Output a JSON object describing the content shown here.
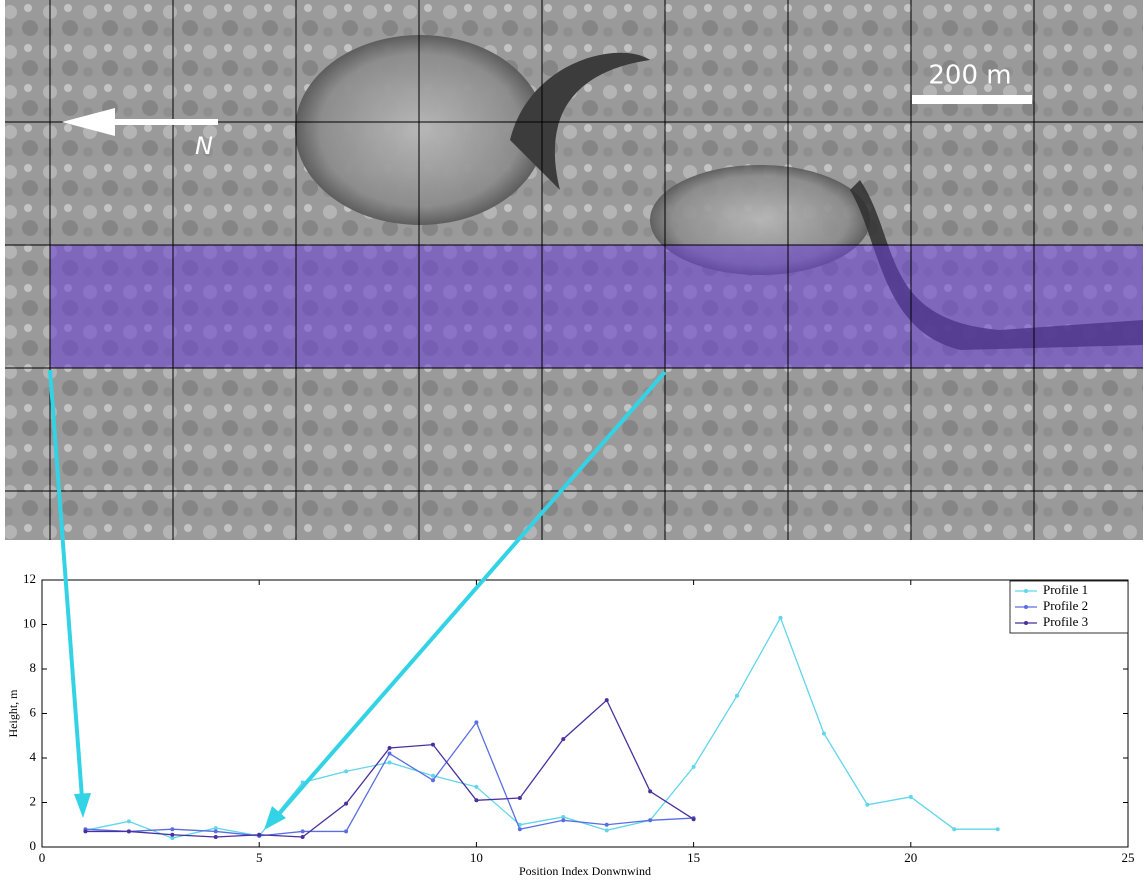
{
  "image": {
    "scale_label": "200 m",
    "north_label": "N"
  },
  "chart_data": {
    "type": "line",
    "x_label": "Position Index Donwnwind",
    "y_label": "Height, m",
    "xlim": [
      0,
      25
    ],
    "xticks": [
      0,
      5,
      10,
      15,
      20,
      25
    ],
    "ylim": [
      0,
      12
    ],
    "yticks": [
      0,
      2,
      4,
      6,
      8,
      10,
      12
    ],
    "legend": "top-right",
    "series": [
      {
        "name": "Profile 1",
        "color": "#5fd6ea",
        "x": [
          1,
          2,
          3,
          4,
          5,
          6,
          7,
          8,
          9,
          10,
          11,
          12,
          13,
          14,
          15,
          16,
          17,
          18,
          19,
          20,
          21,
          22
        ],
        "values": [
          0.75,
          1.15,
          0.4,
          0.85,
          0.5,
          2.9,
          3.4,
          3.8,
          3.2,
          2.7,
          1.0,
          1.35,
          0.75,
          1.2,
          3.6,
          6.8,
          10.3,
          5.1,
          1.9,
          2.25,
          0.8,
          0.8
        ]
      },
      {
        "name": "Profile 2",
        "color": "#5a6ee0",
        "x": [
          1,
          2,
          3,
          4,
          5,
          6,
          7,
          8,
          9,
          10,
          11,
          12,
          13,
          14,
          15
        ],
        "values": [
          0.8,
          0.7,
          0.8,
          0.7,
          0.5,
          0.7,
          0.7,
          4.2,
          3.0,
          5.6,
          0.8,
          1.2,
          1.0,
          1.2,
          1.3
        ]
      },
      {
        "name": "Profile 3",
        "color": "#4a2f9e",
        "x": [
          1,
          2,
          3,
          4,
          5,
          6,
          7,
          8,
          9,
          10,
          11,
          12,
          13,
          14,
          15
        ],
        "values": [
          0.7,
          0.7,
          0.55,
          0.45,
          0.55,
          0.45,
          1.95,
          4.45,
          4.6,
          2.1,
          2.2,
          4.85,
          6.6,
          2.5,
          1.25
        ]
      }
    ]
  }
}
